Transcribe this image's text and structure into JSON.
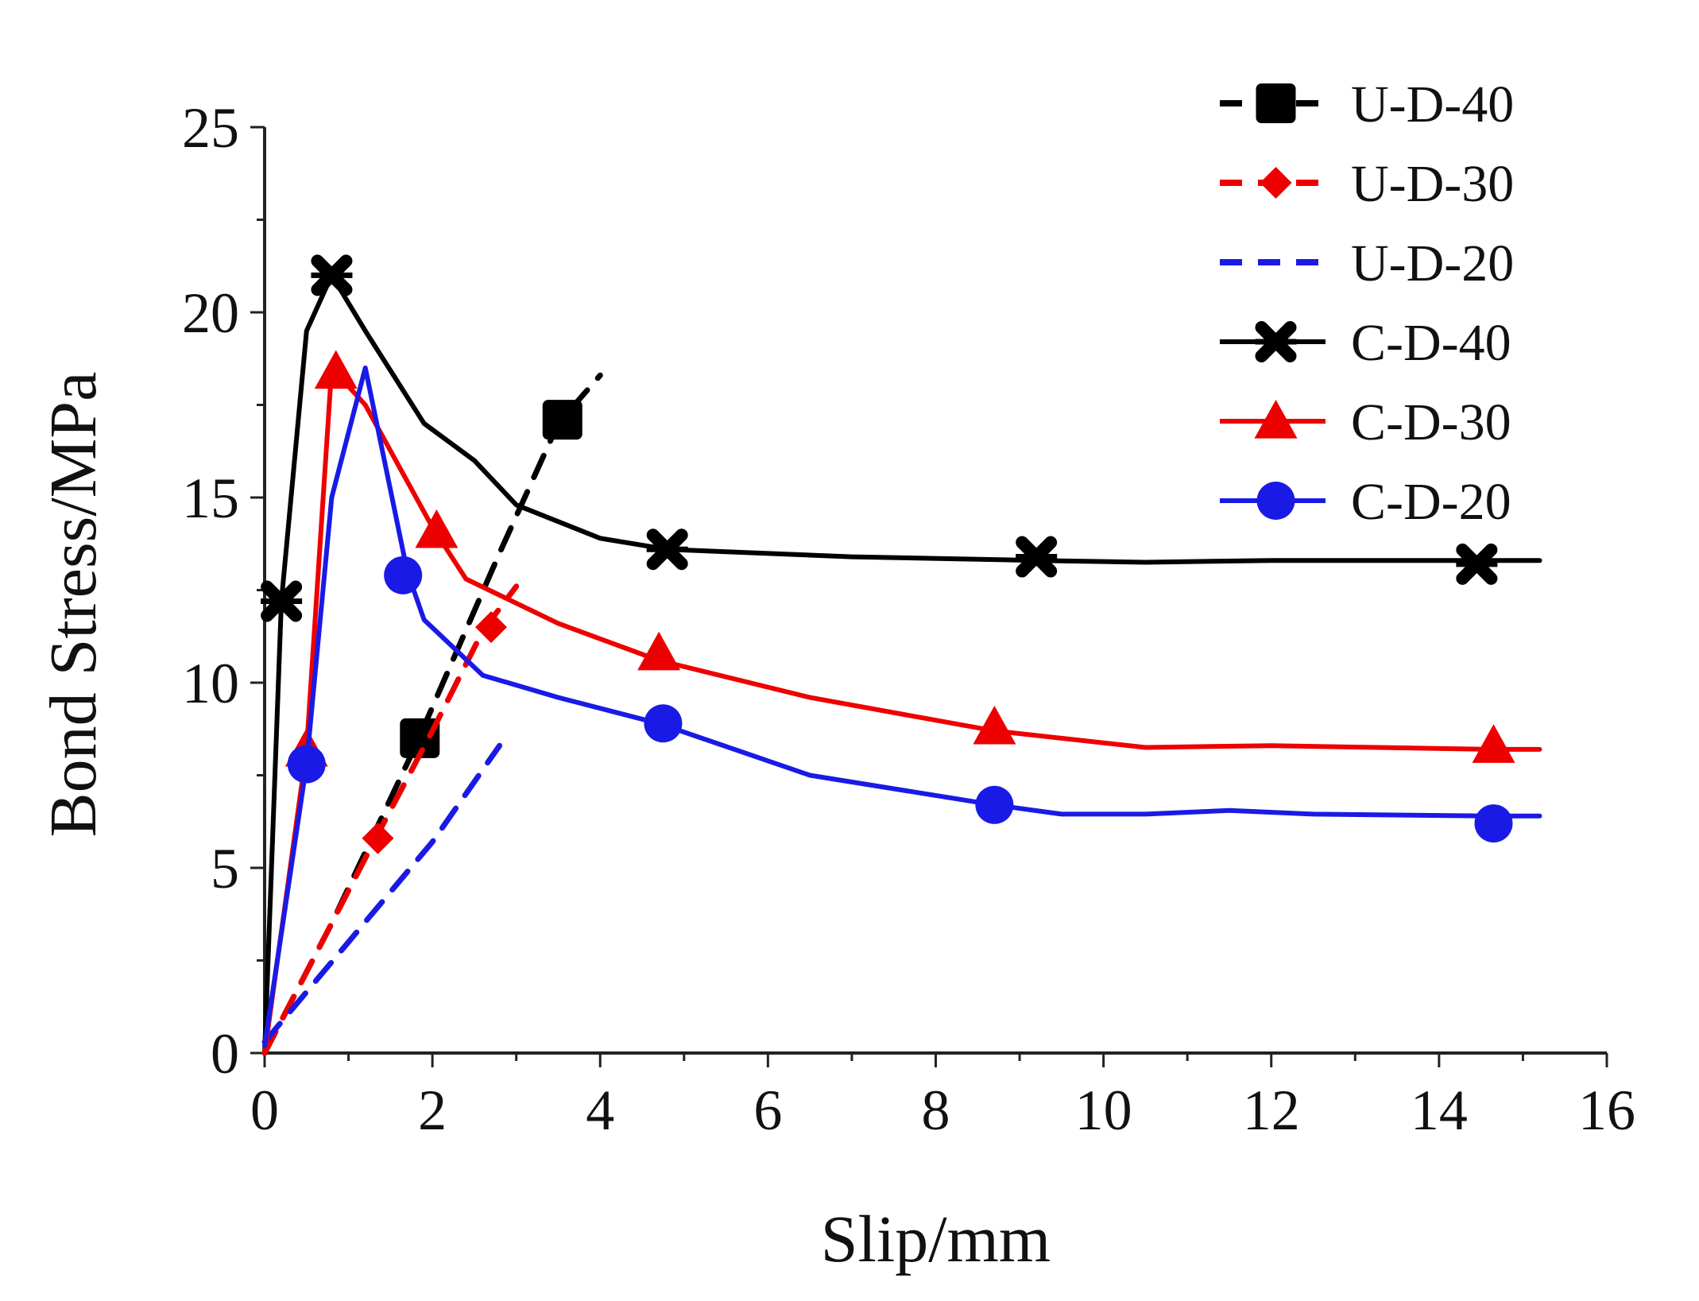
{
  "chart_data": {
    "type": "line",
    "title": "",
    "xlabel": "Slip/mm",
    "ylabel": "Bond Stress/MPa",
    "xlim": [
      0,
      16
    ],
    "ylim": [
      0,
      25
    ],
    "xticks": [
      0,
      2,
      4,
      6,
      8,
      10,
      12,
      14,
      16
    ],
    "yticks": [
      0,
      5,
      10,
      15,
      20,
      25
    ],
    "grid": false,
    "legend_position": "top-right",
    "series": [
      {
        "name": "U-D-40",
        "color": "#000000",
        "dash": true,
        "marker": "square",
        "line": [
          [
            0,
            0
          ],
          [
            0.8,
            3.5
          ],
          [
            1.8,
            8.3
          ],
          [
            2.8,
            13.5
          ],
          [
            3.5,
            17.0
          ],
          [
            4.0,
            18.3
          ]
        ],
        "markers": [
          [
            1.85,
            8.5
          ],
          [
            3.55,
            17.1
          ]
        ]
      },
      {
        "name": "U-D-30",
        "color": "#ee0000",
        "dash": true,
        "marker": "diamond",
        "line": [
          [
            0,
            0
          ],
          [
            1.3,
            5.7
          ],
          [
            2.0,
            8.7
          ],
          [
            2.6,
            11.4
          ],
          [
            3.0,
            12.6
          ]
        ],
        "markers": [
          [
            1.35,
            5.8
          ],
          [
            2.7,
            11.5
          ]
        ]
      },
      {
        "name": "U-D-20",
        "color": "#1a1ae6",
        "dash": true,
        "marker": "none",
        "line": [
          [
            0,
            0.3
          ],
          [
            1.0,
            3.0
          ],
          [
            2.0,
            5.7
          ],
          [
            2.8,
            8.3
          ]
        ],
        "markers": []
      },
      {
        "name": "C-D-40",
        "color": "#000000",
        "dash": false,
        "marker": "x",
        "line": [
          [
            0,
            0
          ],
          [
            0.2,
            12.2
          ],
          [
            0.5,
            19.5
          ],
          [
            0.8,
            21.0
          ],
          [
            1.2,
            19.5
          ],
          [
            1.9,
            17.0
          ],
          [
            2.5,
            16.0
          ],
          [
            3.0,
            14.8
          ],
          [
            4.0,
            13.9
          ],
          [
            4.8,
            13.6
          ],
          [
            7.0,
            13.4
          ],
          [
            9.2,
            13.3
          ],
          [
            10.5,
            13.25
          ],
          [
            12.0,
            13.3
          ],
          [
            14.4,
            13.3
          ],
          [
            15.2,
            13.3
          ]
        ],
        "markers": [
          [
            0.2,
            12.2
          ],
          [
            0.8,
            21.0
          ],
          [
            4.8,
            13.6
          ],
          [
            9.2,
            13.4
          ],
          [
            14.45,
            13.2
          ]
        ]
      },
      {
        "name": "C-D-30",
        "color": "#ee0000",
        "dash": false,
        "marker": "triangle",
        "line": [
          [
            0,
            0
          ],
          [
            0.5,
            8.2
          ],
          [
            0.8,
            18.5
          ],
          [
            1.2,
            17.5
          ],
          [
            2.0,
            14.2
          ],
          [
            2.4,
            12.8
          ],
          [
            3.5,
            11.6
          ],
          [
            4.7,
            10.6
          ],
          [
            6.5,
            9.6
          ],
          [
            8.7,
            8.7
          ],
          [
            10.5,
            8.25
          ],
          [
            12.0,
            8.3
          ],
          [
            14.6,
            8.2
          ],
          [
            15.2,
            8.2
          ]
        ],
        "markers": [
          [
            0.5,
            8.2
          ],
          [
            0.85,
            18.4
          ],
          [
            2.05,
            14.1
          ],
          [
            4.7,
            10.8
          ],
          [
            8.7,
            8.8
          ],
          [
            14.65,
            8.3
          ]
        ]
      },
      {
        "name": "C-D-20",
        "color": "#1a1ae6",
        "dash": false,
        "marker": "circle",
        "line": [
          [
            0,
            0.2
          ],
          [
            0.5,
            7.8
          ],
          [
            0.8,
            15.0
          ],
          [
            1.2,
            18.5
          ],
          [
            1.7,
            13.0
          ],
          [
            1.9,
            11.7
          ],
          [
            2.6,
            10.2
          ],
          [
            3.5,
            9.6
          ],
          [
            4.7,
            8.9
          ],
          [
            6.5,
            7.5
          ],
          [
            8.7,
            6.7
          ],
          [
            9.5,
            6.45
          ],
          [
            10.5,
            6.45
          ],
          [
            11.5,
            6.55
          ],
          [
            12.5,
            6.45
          ],
          [
            14.6,
            6.4
          ],
          [
            15.2,
            6.4
          ]
        ],
        "markers": [
          [
            0.5,
            7.8
          ],
          [
            1.65,
            12.9
          ],
          [
            4.75,
            8.9
          ],
          [
            8.7,
            6.7
          ],
          [
            14.65,
            6.2
          ]
        ]
      }
    ]
  }
}
